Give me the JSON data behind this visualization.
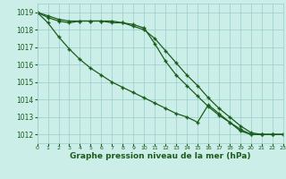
{
  "x": [
    0,
    1,
    2,
    3,
    4,
    5,
    6,
    7,
    8,
    9,
    10,
    11,
    12,
    13,
    14,
    15,
    16,
    17,
    18,
    19,
    20,
    21,
    22,
    23
  ],
  "line1": [
    1019,
    1018.8,
    1018.6,
    1018.5,
    1018.5,
    1018.5,
    1018.5,
    1018.4,
    1018.4,
    1018.2,
    1018.0,
    1017.5,
    1016.8,
    1016.1,
    1015.4,
    1014.8,
    1014.1,
    1013.5,
    1013.0,
    1012.5,
    1012.1,
    1012.0,
    1012.0,
    1012.0
  ],
  "line2": [
    1019,
    1018.7,
    1018.5,
    1018.4,
    1018.5,
    1018.5,
    1018.5,
    1018.5,
    1018.4,
    1018.3,
    1018.1,
    1017.2,
    1016.2,
    1015.4,
    1014.8,
    1014.2,
    1013.6,
    1013.1,
    1012.7,
    1012.3,
    1012.0,
    1012.0,
    1012.0,
    1012.0
  ],
  "line3": [
    1019,
    1018.4,
    1017.6,
    1016.9,
    1016.3,
    1015.8,
    1015.4,
    1015.0,
    1014.7,
    1014.4,
    1014.1,
    1013.8,
    1013.5,
    1013.2,
    1013.0,
    1012.7,
    1013.7,
    1013.2,
    1012.7,
    1012.2,
    1012.0,
    1012.0,
    1012.0,
    1012.0
  ],
  "bg_color": "#cceee8",
  "grid_color": "#99cccc",
  "line_color": "#1a5c1a",
  "xlabel": "Graphe pression niveau de la mer (hPa)",
  "xlim": [
    0,
    23
  ],
  "ylim": [
    1011.5,
    1019.5
  ],
  "yticks": [
    1012,
    1013,
    1014,
    1015,
    1016,
    1017,
    1018,
    1019
  ],
  "xticks": [
    0,
    1,
    2,
    3,
    4,
    5,
    6,
    7,
    8,
    9,
    10,
    11,
    12,
    13,
    14,
    15,
    16,
    17,
    18,
    19,
    20,
    21,
    22,
    23
  ]
}
